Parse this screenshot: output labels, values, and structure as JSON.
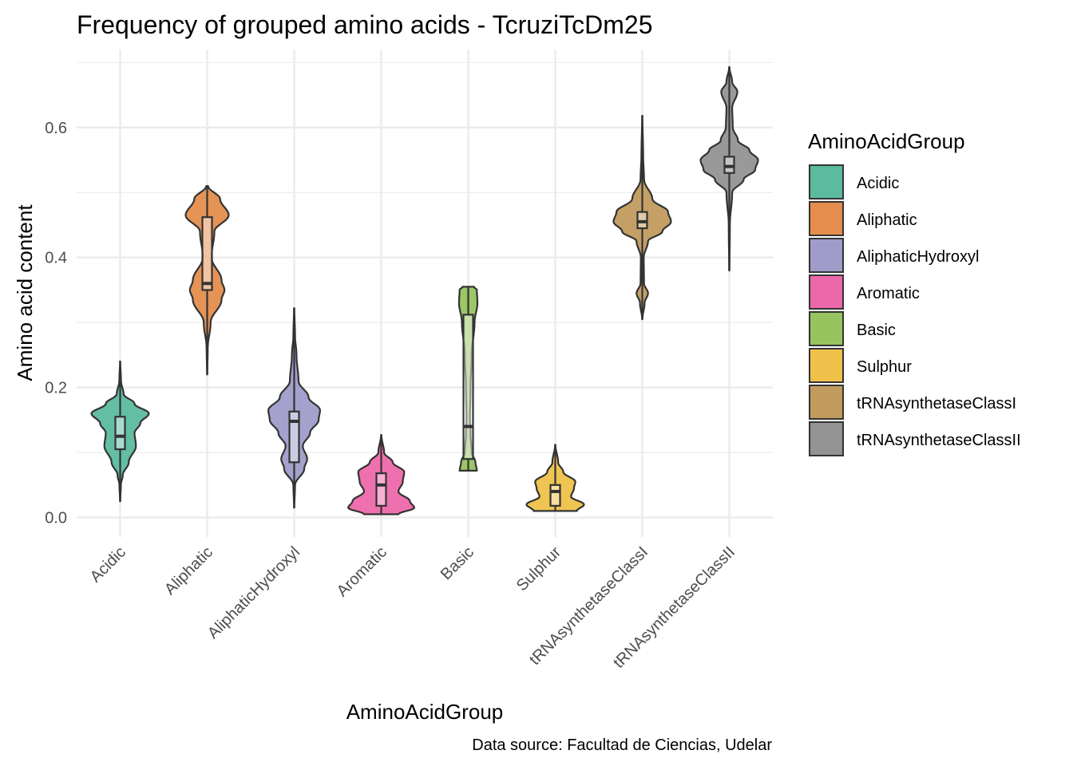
{
  "chart_data": {
    "type": "violin",
    "title": "Frequency of grouped amino acids - TcruziTcDm25",
    "xlabel": "AminoAcidGroup",
    "ylabel": "Amino acid content",
    "caption": "Data source: Facultad de Ciencias, Udelar",
    "ylim": [
      -0.03,
      0.72
    ],
    "yticks": [
      0.0,
      0.2,
      0.4,
      0.6
    ],
    "ytick_labels": [
      "0.0",
      "0.2",
      "0.4",
      "0.6"
    ],
    "grid": true,
    "legend": {
      "title": "AminoAcidGroup",
      "position": "right"
    },
    "categories": [
      "Acidic",
      "Aliphatic",
      "AliphaticHydroxyl",
      "Aromatic",
      "Basic",
      "Sulphur",
      "tRNAsynthetaseClassI",
      "tRNAsynthetaseClassII"
    ],
    "series": [
      {
        "name": "Acidic",
        "color": "#5bbb9f",
        "min": 0.025,
        "q1": 0.105,
        "median": 0.125,
        "q3": 0.155,
        "max": 0.24,
        "density": [
          [
            0.025,
            0.005
          ],
          [
            0.05,
            0.025
          ],
          [
            0.065,
            0.09
          ],
          [
            0.085,
            0.3
          ],
          [
            0.11,
            0.55
          ],
          [
            0.13,
            0.5
          ],
          [
            0.145,
            0.7
          ],
          [
            0.16,
            1.0
          ],
          [
            0.175,
            0.5
          ],
          [
            0.19,
            0.12
          ],
          [
            0.21,
            0.03
          ],
          [
            0.24,
            0.005
          ]
        ]
      },
      {
        "name": "Aliphatic",
        "color": "#e58d4d",
        "min": 0.22,
        "q1": 0.35,
        "median": 0.36,
        "q3": 0.462,
        "max": 0.51,
        "density": [
          [
            0.22,
            0.005
          ],
          [
            0.26,
            0.02
          ],
          [
            0.3,
            0.12
          ],
          [
            0.335,
            0.5
          ],
          [
            0.35,
            0.6
          ],
          [
            0.365,
            0.5
          ],
          [
            0.4,
            0.15
          ],
          [
            0.44,
            0.25
          ],
          [
            0.465,
            0.75
          ],
          [
            0.49,
            0.45
          ],
          [
            0.51,
            0.03
          ]
        ]
      },
      {
        "name": "AliphaticHydroxyl",
        "color": "#9f9cca",
        "min": 0.015,
        "q1": 0.085,
        "median": 0.148,
        "q3": 0.163,
        "max": 0.322,
        "density": [
          [
            0.015,
            0.005
          ],
          [
            0.05,
            0.03
          ],
          [
            0.075,
            0.35
          ],
          [
            0.09,
            0.45
          ],
          [
            0.11,
            0.3
          ],
          [
            0.13,
            0.55
          ],
          [
            0.15,
            0.85
          ],
          [
            0.165,
            0.9
          ],
          [
            0.185,
            0.5
          ],
          [
            0.21,
            0.15
          ],
          [
            0.25,
            0.08
          ],
          [
            0.28,
            0.03
          ],
          [
            0.322,
            0.005
          ]
        ]
      },
      {
        "name": "Aromatic",
        "color": "#ed68ab",
        "min": 0.005,
        "q1": 0.018,
        "median": 0.05,
        "q3": 0.068,
        "max": 0.127,
        "density": [
          [
            0.005,
            0.6
          ],
          [
            0.015,
            1.15
          ],
          [
            0.025,
            1.0
          ],
          [
            0.04,
            0.6
          ],
          [
            0.055,
            0.75
          ],
          [
            0.07,
            0.8
          ],
          [
            0.085,
            0.4
          ],
          [
            0.1,
            0.1
          ],
          [
            0.127,
            0.005
          ]
        ]
      },
      {
        "name": "Basic",
        "color": "#97c45f",
        "min": 0.072,
        "q1": 0.09,
        "median": 0.14,
        "q3": 0.312,
        "max": 0.355,
        "density": [
          [
            0.072,
            0.3
          ],
          [
            0.085,
            0.25
          ],
          [
            0.1,
            0.12
          ],
          [
            0.13,
            0.08
          ],
          [
            0.15,
            0.06
          ],
          [
            0.2,
            0.08
          ],
          [
            0.25,
            0.12
          ],
          [
            0.3,
            0.22
          ],
          [
            0.33,
            0.32
          ],
          [
            0.35,
            0.3
          ],
          [
            0.355,
            0.2
          ]
        ]
      },
      {
        "name": "Sulphur",
        "color": "#efc14a",
        "min": 0.01,
        "q1": 0.018,
        "median": 0.04,
        "q3": 0.05,
        "max": 0.112,
        "density": [
          [
            0.01,
            0.75
          ],
          [
            0.02,
            1.0
          ],
          [
            0.032,
            0.55
          ],
          [
            0.045,
            0.65
          ],
          [
            0.055,
            0.7
          ],
          [
            0.07,
            0.28
          ],
          [
            0.085,
            0.1
          ],
          [
            0.112,
            0.005
          ]
        ]
      },
      {
        "name": "tRNAsynthetaseClassI",
        "color": "#c19b5e",
        "min": 0.305,
        "q1": 0.445,
        "median": 0.455,
        "q3": 0.47,
        "max": 0.618,
        "density": [
          [
            0.305,
            0.005
          ],
          [
            0.33,
            0.08
          ],
          [
            0.345,
            0.2
          ],
          [
            0.36,
            0.06
          ],
          [
            0.4,
            0.05
          ],
          [
            0.425,
            0.2
          ],
          [
            0.44,
            0.7
          ],
          [
            0.455,
            1.0
          ],
          [
            0.47,
            0.9
          ],
          [
            0.49,
            0.35
          ],
          [
            0.52,
            0.06
          ],
          [
            0.56,
            0.03
          ],
          [
            0.618,
            0.005
          ]
        ]
      },
      {
        "name": "tRNAsynthetaseClassII",
        "color": "#939393",
        "min": 0.38,
        "q1": 0.53,
        "median": 0.54,
        "q3": 0.555,
        "max": 0.693,
        "density": [
          [
            0.38,
            0.005
          ],
          [
            0.45,
            0.02
          ],
          [
            0.5,
            0.1
          ],
          [
            0.52,
            0.5
          ],
          [
            0.535,
            0.9
          ],
          [
            0.55,
            1.0
          ],
          [
            0.565,
            0.7
          ],
          [
            0.58,
            0.3
          ],
          [
            0.6,
            0.12
          ],
          [
            0.63,
            0.1
          ],
          [
            0.655,
            0.28
          ],
          [
            0.67,
            0.1
          ],
          [
            0.693,
            0.005
          ]
        ]
      }
    ]
  }
}
